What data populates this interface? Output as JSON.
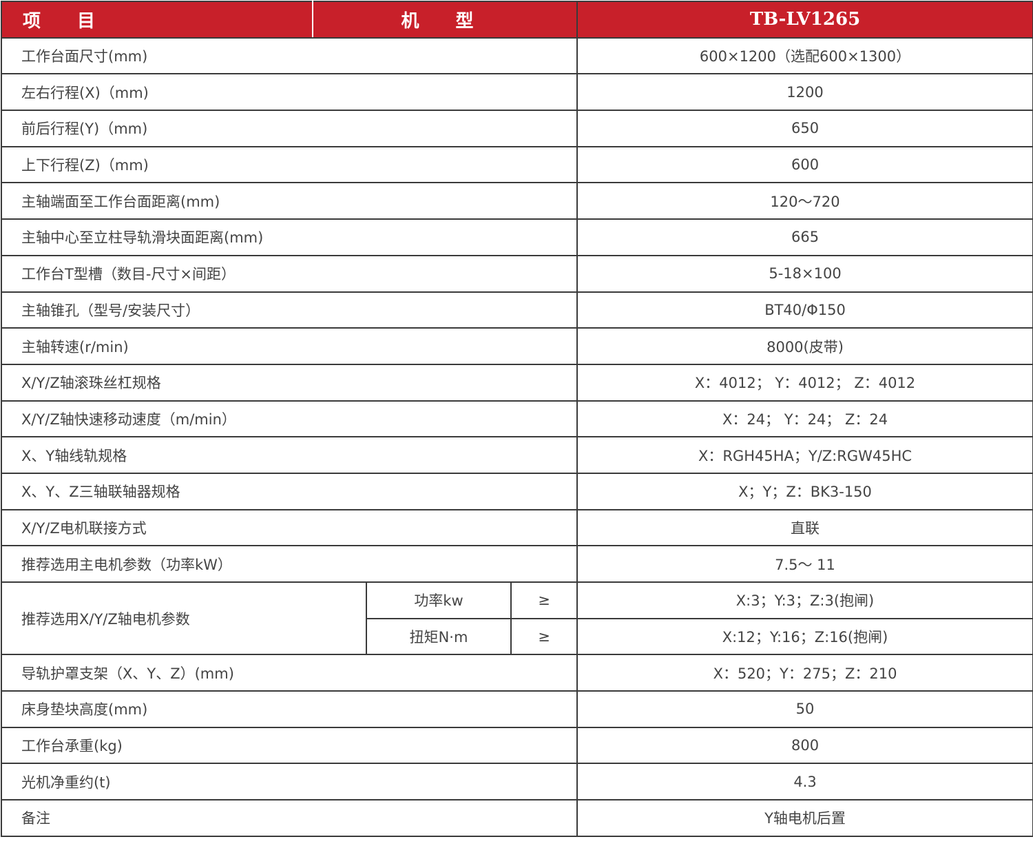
{
  "header": {
    "item": "项 目",
    "model": "机 型",
    "model_name": "TB-LV1265"
  },
  "rows": [
    {
      "label": "工作台面尺寸(mm)",
      "value": "600×1200（选配600×1300）"
    },
    {
      "label": "左右行程(X)（mm)",
      "value": "1200"
    },
    {
      "label": "前后行程(Y)（mm)",
      "value": "650"
    },
    {
      "label": "上下行程(Z)（mm)",
      "value": "600"
    },
    {
      "label": "主轴端面至工作台面距离(mm)",
      "value": "120～720"
    },
    {
      "label": "主轴中心至立柱导轨滑块面距离(mm)",
      "value": "665"
    },
    {
      "label": "工作台T型槽（数目-尺寸×间距）",
      "value": "5-18×100"
    },
    {
      "label": "主轴锥孔（型号/安装尺寸）",
      "value": "BT40/Φ150"
    },
    {
      "label": "主轴转速(r/min)",
      "value": "8000(皮带)"
    },
    {
      "label": "X/Y/Z轴滚珠丝杠规格",
      "value": "X：4012； Y：4012； Z：4012"
    },
    {
      "label": "X/Y/Z轴快速移动速度（m/min）",
      "value": "X：24； Y：24； Z：24"
    },
    {
      "label": "X、Y轴线轨规格",
      "value": "X：RGH45HA；Y/Z:RGW45HC"
    },
    {
      "label": "X、Y、Z三轴联轴器规格",
      "value": "X；Y；Z：BK3-150"
    },
    {
      "label": "X/Y/Z电机联接方式",
      "value": "直联"
    },
    {
      "label": "推荐选用主电机参数（功率kW）",
      "value": "7.5～ 11"
    }
  ],
  "split_row": {
    "label": "推荐选用X/Y/Z轴电机参数",
    "subs": [
      {
        "name": "功率kw",
        "op": "≥",
        "value": "X:3；Y:3；Z:3(抱闸)"
      },
      {
        "name": "扭矩N·m",
        "op": "≥",
        "value": "X:12；Y:16；Z:16(抱闸)"
      }
    ]
  },
  "rows2": [
    {
      "label": "导轨护罩支架（X、Y、Z）(mm)",
      "value": "X：520；Y：275；Z：210"
    },
    {
      "label": "床身垫块高度(mm)",
      "value": "50"
    },
    {
      "label": "工作台承重(kg)",
      "value": "800"
    },
    {
      "label": "光机净重约(t)",
      "value": "4.3"
    },
    {
      "label": "备注",
      "value": "Y轴电机后置"
    }
  ],
  "colors": {
    "header_bg": "#c8202a",
    "header_text": "#ffffff",
    "text": "#444444",
    "border": "#3a3a3a"
  }
}
